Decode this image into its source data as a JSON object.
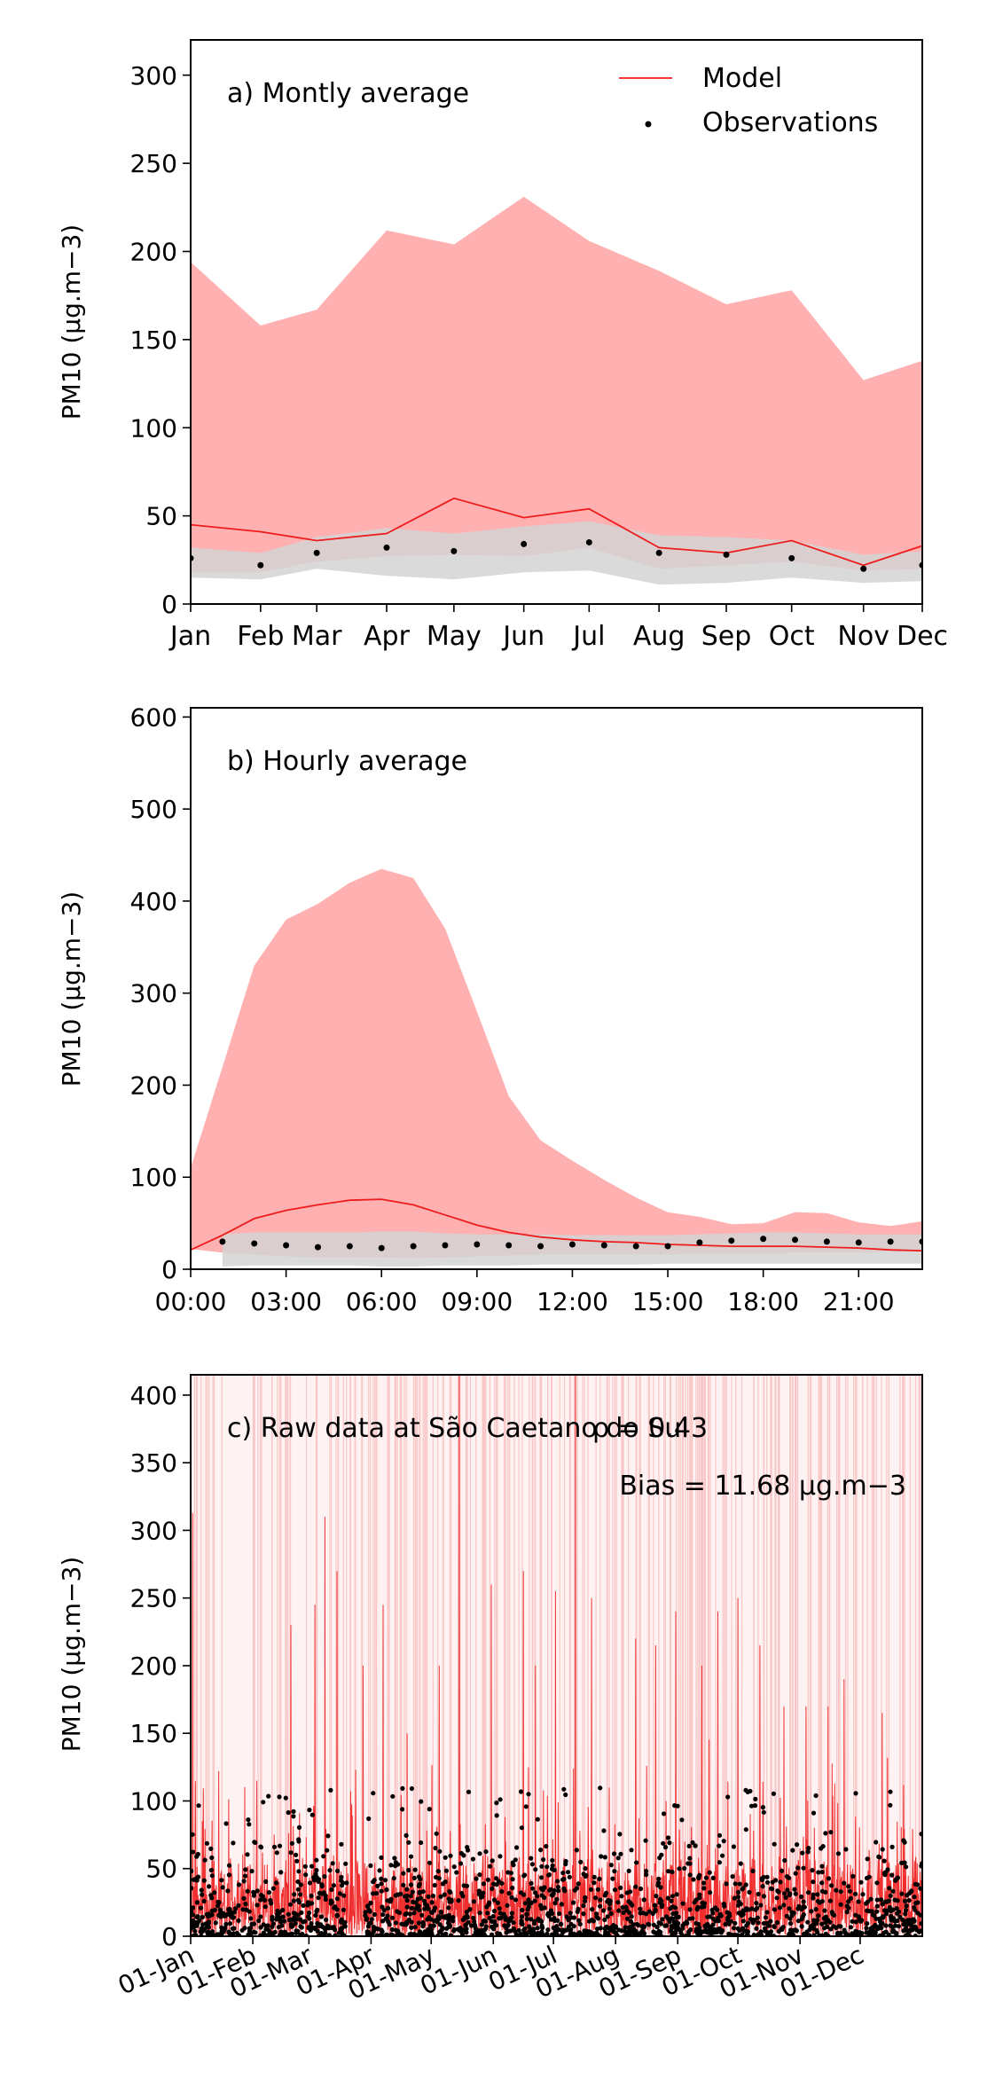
{
  "chart_data": [
    {
      "type": "line",
      "title": "a) Montly average",
      "xlabel": "",
      "ylabel": "PM10 (μg.m−3)",
      "ylim": [
        0,
        320
      ],
      "yticks": [
        0,
        50,
        100,
        150,
        200,
        250,
        300
      ],
      "categories": [
        "Jan",
        "Feb",
        "Mar",
        "Apr",
        "May",
        "Jun",
        "Jul",
        "Aug",
        "Sep",
        "Oct",
        "Nov",
        "Dec"
      ],
      "x": [
        0,
        1.07,
        1.93,
        3.0,
        4.03,
        5.1,
        6.1,
        7.17,
        8.2,
        9.2,
        10.3,
        11.2
      ],
      "legend": [
        "Model",
        "Observations"
      ],
      "legend_placement": "top-right",
      "series": [
        {
          "name": "Model",
          "kind": "line",
          "color": "#ee1c1c",
          "x": [
            0,
            1.07,
            1.93,
            3.0,
            4.03,
            5.1,
            6.1,
            7.17,
            8.2,
            9.2,
            10.3,
            11.2
          ],
          "values": [
            45,
            41,
            36,
            40,
            60,
            49,
            54,
            32,
            29,
            36,
            22,
            33
          ]
        },
        {
          "name": "Model range",
          "kind": "band",
          "color": "#ffb0b0",
          "x": [
            0,
            1.07,
            1.93,
            3.0,
            4.03,
            5.1,
            6.1,
            7.17,
            8.2,
            9.2,
            10.3,
            11.2
          ],
          "upper": [
            194,
            158,
            167,
            212,
            204,
            231,
            206,
            189,
            170,
            178,
            127,
            138
          ],
          "lower": [
            18,
            18,
            24,
            27,
            28,
            27,
            32,
            20,
            22,
            24,
            19,
            20
          ]
        },
        {
          "name": "Observations range",
          "kind": "band",
          "color": "#d4d4d4",
          "x": [
            0,
            1.07,
            1.93,
            3.0,
            4.03,
            5.1,
            6.1,
            7.17,
            8.2,
            9.2,
            10.3,
            11.2
          ],
          "upper": [
            32,
            29,
            38,
            43,
            40,
            44,
            47,
            39,
            38,
            36,
            28,
            30
          ],
          "lower": [
            15,
            14,
            20,
            16,
            14,
            18,
            19,
            11,
            12,
            15,
            12,
            13
          ]
        },
        {
          "name": "Observations",
          "kind": "points",
          "color": "#000000",
          "x": [
            0,
            1.07,
            1.93,
            3.0,
            4.03,
            5.1,
            6.1,
            7.17,
            8.2,
            9.2,
            10.3,
            11.2
          ],
          "values": [
            26,
            22,
            29,
            32,
            30,
            34,
            35,
            29,
            28,
            26,
            20,
            22
          ]
        }
      ]
    },
    {
      "type": "line",
      "title": "b) Hourly average",
      "xlabel": "",
      "ylabel": "PM10 (μg.m−3)",
      "ylim": [
        0,
        610
      ],
      "yticks": [
        0,
        100,
        200,
        300,
        400,
        500,
        600
      ],
      "xlim": [
        0,
        23
      ],
      "xticks": [
        0,
        3,
        6,
        9,
        12,
        15,
        18,
        21
      ],
      "xtick_labels": [
        "00:00",
        "03:00",
        "06:00",
        "09:00",
        "12:00",
        "15:00",
        "18:00",
        "21:00"
      ],
      "series": [
        {
          "name": "Model range",
          "kind": "band",
          "color": "#ffb0b0",
          "x": [
            0,
            1,
            2,
            3,
            4,
            5,
            6,
            7,
            8,
            9,
            10,
            11,
            12,
            13,
            14,
            15,
            16,
            17,
            18,
            19,
            20,
            21,
            22,
            23
          ],
          "upper": [
            110,
            220,
            330,
            380,
            397,
            420,
            435,
            425,
            370,
            280,
            188,
            140,
            118,
            97,
            78,
            62,
            57,
            49,
            50,
            62,
            61,
            51,
            47,
            52
          ],
          "lower": [
            22,
            18,
            16,
            14,
            13,
            13,
            13,
            12,
            13,
            14,
            15,
            16,
            16,
            16,
            16,
            16,
            17,
            17,
            17,
            18,
            18,
            18,
            19,
            20
          ]
        },
        {
          "name": "Observations range",
          "kind": "band",
          "color": "#d4d4d4",
          "x": [
            1,
            2,
            3,
            4,
            5,
            6,
            7,
            8,
            9,
            10,
            11,
            12,
            13,
            14,
            15,
            16,
            17,
            18,
            19,
            20,
            21,
            22,
            23
          ],
          "upper": [
            38,
            40,
            40,
            40,
            40,
            41,
            41,
            39,
            38,
            38,
            38,
            37,
            37,
            37,
            37,
            38,
            39,
            40,
            40,
            39,
            38,
            38,
            38
          ],
          "lower": [
            3,
            4,
            4,
            4,
            4,
            3,
            3,
            4,
            4,
            4,
            5,
            5,
            5,
            5,
            6,
            6,
            6,
            6,
            6,
            6,
            6,
            6,
            6
          ]
        },
        {
          "name": "Model",
          "kind": "line",
          "color": "#ee1c1c",
          "x": [
            0,
            1,
            2,
            3,
            4,
            5,
            6,
            7,
            8,
            9,
            10,
            11,
            12,
            13,
            14,
            15,
            16,
            17,
            18,
            19,
            20,
            21,
            22,
            23
          ],
          "values": [
            21,
            37,
            55,
            64,
            70,
            75,
            76,
            70,
            59,
            48,
            40,
            35,
            32,
            30,
            29,
            27,
            26,
            25,
            25,
            25,
            24,
            23,
            21,
            20
          ]
        },
        {
          "name": "Observations",
          "kind": "points",
          "color": "#000000",
          "x": [
            1,
            2,
            3,
            4,
            5,
            6,
            7,
            8,
            9,
            10,
            11,
            12,
            13,
            14,
            15,
            16,
            17,
            18,
            19,
            20,
            21,
            22,
            23
          ],
          "values": [
            30,
            28,
            26,
            24,
            25,
            23,
            25,
            26,
            27,
            26,
            25,
            27,
            26,
            25,
            25,
            29,
            31,
            33,
            32,
            30,
            29,
            30,
            30
          ]
        }
      ]
    },
    {
      "type": "line",
      "title": "c) Raw data at São Caetano do Sul",
      "xlabel": "",
      "ylabel": "PM10 (μg.m−3)",
      "ylim": [
        0,
        415
      ],
      "yticks": [
        0,
        50,
        100,
        150,
        200,
        250,
        300,
        350,
        400
      ],
      "xlim": [
        "01-Jan",
        "31-Dec"
      ],
      "xtick_labels": [
        "01-Jan",
        "01-Feb",
        "01-Mar",
        "01-Apr",
        "01-May",
        "01-Jun",
        "01-Jul",
        "01-Aug",
        "01-Sep",
        "01-Oct",
        "01-Nov",
        "01-Dec"
      ],
      "xtick_days": [
        0,
        31,
        59,
        90,
        120,
        151,
        181,
        212,
        243,
        273,
        304,
        334
      ],
      "annotations": [
        "ρ = 0.43",
        "Bias = 11.68 μg.m−3"
      ],
      "series": [
        {
          "name": "Model",
          "kind": "dense-line",
          "color": "#ee1c1c",
          "typical_range": [
            0,
            60
          ],
          "peak_days": [
            1,
            14,
            33,
            50,
            62,
            67,
            73,
            86,
            96,
            108,
            124,
            134,
            150,
            166,
            172,
            182,
            192,
            200,
            222,
            232,
            242,
            255,
            263,
            273,
            284,
            296,
            307,
            318,
            326,
            345
          ],
          "peak_values": [
            313,
            122,
            115,
            230,
            245,
            310,
            270,
            200,
            245,
            150,
            200,
            420,
            260,
            270,
            200,
            255,
            420,
            250,
            220,
            215,
            240,
            200,
            240,
            250,
            215,
            170,
            170,
            170,
            190,
            165
          ]
        },
        {
          "name": "Model range",
          "kind": "band",
          "color": "#fde2e2",
          "ylim": [
            0,
            415
          ]
        },
        {
          "name": "Observations",
          "kind": "points",
          "color": "#000000",
          "typical_range": [
            0,
            60
          ],
          "max": 110,
          "gaps_days": [
            [
              78,
              87
            ]
          ]
        }
      ]
    }
  ]
}
